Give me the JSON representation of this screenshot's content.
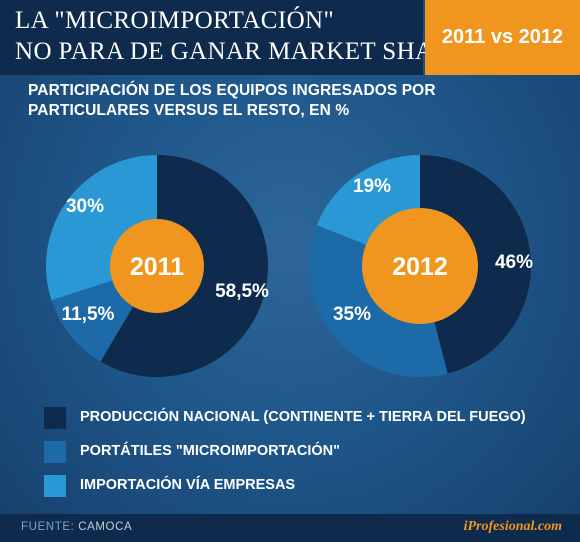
{
  "header": {
    "title_line_1": "LA \"MICROIMPORTACIÓN\"",
    "title_line_2": "NO PARA DE GANAR MARKET SHARE",
    "badge": "2011 vs 2012"
  },
  "subtitle": {
    "line_1": "PARTICIPACIÓN DE LOS EQUIPOS INGRESADOS POR",
    "line_2": "PARTICULARES VERSUS EL RESTO, EN %"
  },
  "footer": {
    "source_label": "FUENTE:",
    "source_name": "CAMOCA",
    "brand": "iProfesional.com"
  },
  "colors": {
    "nacional": "#0e2a4c",
    "microimportacion": "#1d6aa8",
    "empresas": "#2a98d4",
    "center": "#f0961e"
  },
  "chart_data": {
    "type": "pie",
    "subtype": "donut",
    "unit": "%",
    "categories": [
      "PRODUCCIÓN NACIONAL (CONTINENTE + TIERRA DEL FUEGO)",
      "PORTÁTILES \"MICROIMPORTACIÓN\"",
      "IMPORTACIÓN VÍA EMPRESAS"
    ],
    "legend_position": "bottom",
    "charts": [
      {
        "center_label": "2011",
        "values": [
          58.5,
          11.5,
          30
        ],
        "value_labels": [
          "58,5%",
          "11,5%",
          "30%"
        ]
      },
      {
        "center_label": "2012",
        "values": [
          46,
          35,
          19
        ],
        "value_labels": [
          "46%",
          "35%",
          "19%"
        ]
      }
    ]
  }
}
